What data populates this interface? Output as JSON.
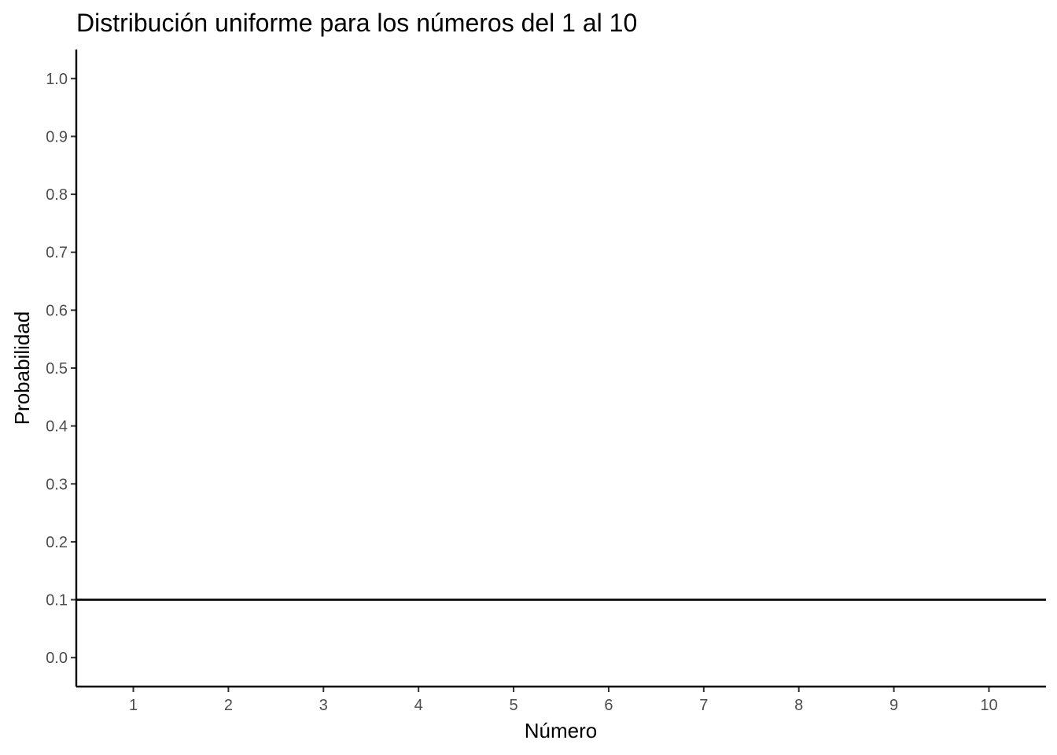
{
  "chart_data": {
    "type": "line",
    "title": "Distribución uniforme para los números del 1 al 10",
    "xlabel": "Número",
    "ylabel": "Probabilidad",
    "x_ticks": [
      "1",
      "2",
      "3",
      "4",
      "5",
      "6",
      "7",
      "8",
      "9",
      "10"
    ],
    "y_ticks": [
      "0.0",
      "0.1",
      "0.2",
      "0.3",
      "0.4",
      "0.5",
      "0.6",
      "0.7",
      "0.8",
      "0.9",
      "1.0"
    ],
    "xlim": [
      0.4,
      10.6
    ],
    "ylim": [
      -0.05,
      1.05
    ],
    "grid": false,
    "series": [
      {
        "x": [
          0.4,
          10.6
        ],
        "y": [
          0.1,
          0.1
        ],
        "color": "#000000"
      }
    ]
  }
}
